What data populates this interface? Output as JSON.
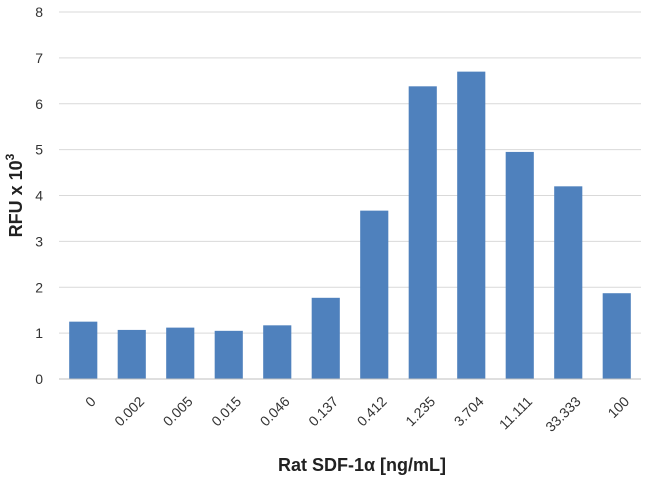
{
  "chart_data": {
    "type": "bar",
    "title": "",
    "xlabel": "Rat SDF-1α [ng/mL]",
    "ylabel": "RFU x 10",
    "ylabel_superscript": "3",
    "categories": [
      "0",
      "0.002",
      "0.005",
      "0.015",
      "0.046",
      "0.137",
      "0.412",
      "1.235",
      "3.704",
      "11.111",
      "33.333",
      "100"
    ],
    "values": [
      1.25,
      1.07,
      1.12,
      1.05,
      1.17,
      1.77,
      3.67,
      6.38,
      6.7,
      4.95,
      4.2,
      1.87
    ],
    "ylim": [
      0,
      8
    ],
    "yticks": [
      "0",
      "1",
      "2",
      "3",
      "4",
      "5",
      "6",
      "7",
      "8"
    ],
    "grid": true,
    "legend": "none",
    "bar_color": "#4f81bd"
  }
}
